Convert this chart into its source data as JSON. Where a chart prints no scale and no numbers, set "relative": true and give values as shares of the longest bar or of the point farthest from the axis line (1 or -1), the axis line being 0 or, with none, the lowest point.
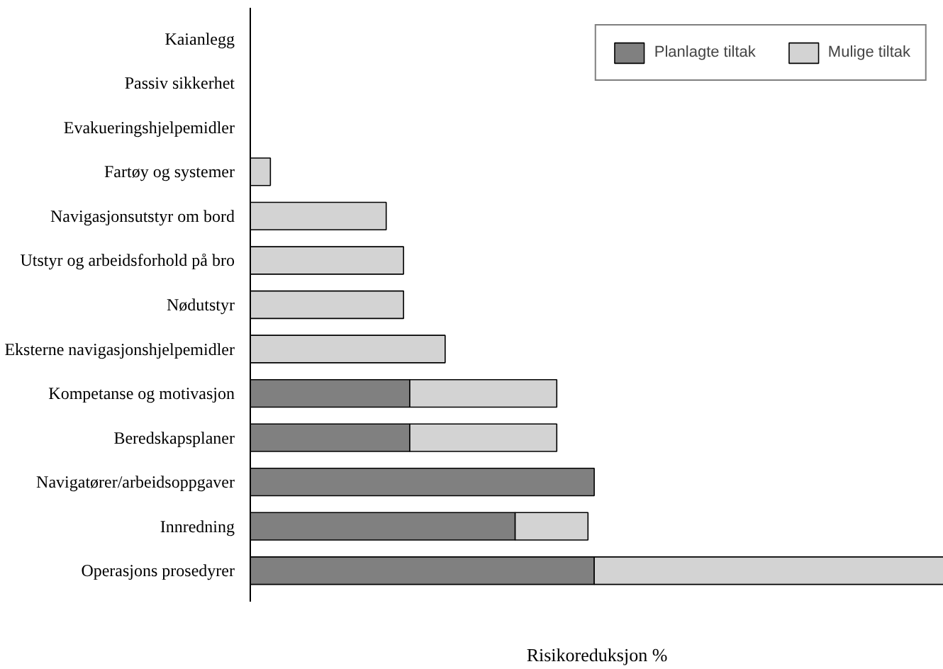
{
  "chart_data": {
    "type": "bar",
    "orientation": "horizontal",
    "stacked": true,
    "relative": true,
    "xlabel": "Risikoreduksjon %",
    "legend": "top right",
    "grid": false,
    "categories": [
      "Kaianlegg",
      "Passiv sikkerhet",
      "Evakueringshjelpemidler",
      "Fartøy og systemer",
      "Navigasjonsutstyr om bord",
      "Utstyr og arbeidsforhold på bro",
      "Nødutstyr",
      "Eksterne navigasjonshjelpemidler",
      "Kompetanse og motivasjon",
      "Beredskapsplaner",
      "Navigatører/arbeidsoppgaver",
      "Innredning",
      "Operasjons prosedyrer"
    ],
    "series": [
      {
        "name": "Planlagte tiltak",
        "color": "#808080",
        "values": [
          null,
          null,
          null,
          null,
          null,
          null,
          null,
          null,
          0.23,
          0.23,
          0.496,
          0.382,
          0.496
        ]
      },
      {
        "name": "Mulige tiltak",
        "color": "#d3d3d3",
        "values": [
          null,
          null,
          null,
          0.029,
          0.196,
          0.221,
          0.221,
          0.281,
          0.212,
          0.212,
          null,
          0.105,
          0.504
        ]
      }
    ]
  }
}
